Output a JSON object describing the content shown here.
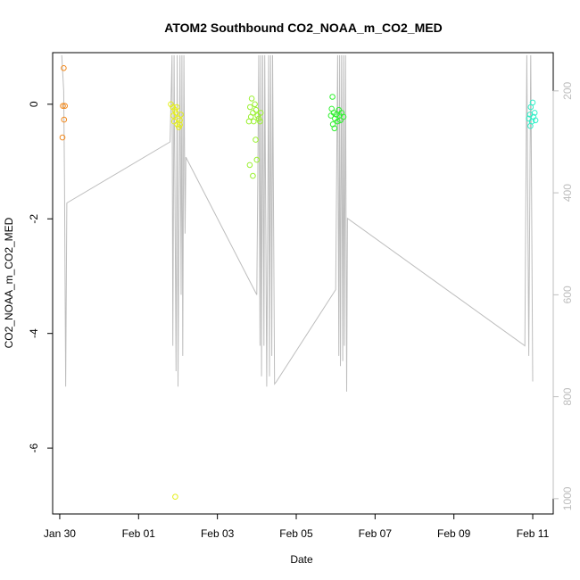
{
  "chart_data": {
    "type": "scatter",
    "title": "ATOM2 Southbound CO2_NOAA_m_CO2_MED",
    "xlabel": "Date",
    "ylabel": "CO2_NOAA_m_CO2_MED",
    "x_ticks": [
      "Jan 30",
      "Feb 01",
      "Feb 03",
      "Feb 05",
      "Feb 07",
      "Feb 09",
      "Feb 11"
    ],
    "x_tick_days": [
      0,
      2,
      4,
      6,
      8,
      10,
      12
    ],
    "xlim_days": [
      -0.18,
      12.52
    ],
    "ylim": [
      -7.15,
      0.9
    ],
    "y_ticks": [
      0,
      -2,
      -4,
      -6
    ],
    "right_axis": {
      "ticks": [
        200,
        400,
        600,
        800,
        1000
      ],
      "lim": [
        125,
        1030
      ],
      "color": "#bdbdbd"
    },
    "grid": false,
    "line_color": "#bdbdbd",
    "altitude_profile": [
      [
        0.05,
        130
      ],
      [
        0.1,
        200
      ],
      [
        0.12,
        380
      ],
      [
        0.15,
        780
      ],
      [
        0.18,
        420
      ],
      [
        2.8,
        300
      ],
      [
        2.85,
        130
      ],
      [
        2.87,
        700
      ],
      [
        2.9,
        130
      ],
      [
        2.95,
        750
      ],
      [
        2.98,
        130
      ],
      [
        3.0,
        780
      ],
      [
        3.05,
        130
      ],
      [
        3.08,
        600
      ],
      [
        3.1,
        130
      ],
      [
        3.12,
        720
      ],
      [
        3.15,
        130
      ],
      [
        3.18,
        480
      ],
      [
        3.2,
        330
      ],
      [
        5.0,
        600
      ],
      [
        5.05,
        130
      ],
      [
        5.08,
        700
      ],
      [
        5.1,
        130
      ],
      [
        5.12,
        760
      ],
      [
        5.15,
        130
      ],
      [
        5.18,
        700
      ],
      [
        5.2,
        130
      ],
      [
        5.25,
        780
      ],
      [
        5.3,
        130
      ],
      [
        5.32,
        760
      ],
      [
        5.35,
        130
      ],
      [
        5.38,
        720
      ],
      [
        5.4,
        130
      ],
      [
        5.45,
        775
      ],
      [
        5.5,
        770
      ],
      [
        7.0,
        590
      ],
      [
        7.05,
        130
      ],
      [
        7.08,
        720
      ],
      [
        7.1,
        130
      ],
      [
        7.12,
        740
      ],
      [
        7.15,
        130
      ],
      [
        7.18,
        730
      ],
      [
        7.2,
        130
      ],
      [
        7.22,
        700
      ],
      [
        7.25,
        130
      ],
      [
        7.28,
        790
      ],
      [
        7.3,
        450
      ],
      [
        11.8,
        700
      ],
      [
        11.85,
        130
      ],
      [
        11.9,
        720
      ],
      [
        11.95,
        130
      ],
      [
        12.0,
        770
      ]
    ],
    "series": [
      {
        "color": "#f28a1f",
        "points": [
          [
            0.1,
            0.63
          ],
          [
            0.08,
            -0.03
          ],
          [
            0.13,
            -0.03
          ],
          [
            0.11,
            -0.27
          ],
          [
            0.07,
            -0.58
          ]
        ]
      },
      {
        "color": "#e5ef1a",
        "points": [
          [
            2.82,
            0.0
          ],
          [
            2.87,
            -0.05
          ],
          [
            2.92,
            -0.1
          ],
          [
            2.88,
            -0.2
          ],
          [
            2.95,
            -0.15
          ],
          [
            3.0,
            -0.25
          ],
          [
            2.98,
            -0.35
          ],
          [
            3.05,
            -0.28
          ],
          [
            3.02,
            -0.4
          ],
          [
            3.07,
            -0.18
          ],
          [
            2.9,
            -0.3
          ],
          [
            2.97,
            -0.05
          ],
          [
            3.05,
            -0.36
          ],
          [
            2.93,
            -6.85
          ]
        ]
      },
      {
        "color": "#99f02e",
        "points": [
          [
            4.87,
            0.1
          ],
          [
            4.83,
            -0.05
          ],
          [
            4.9,
            -0.15
          ],
          [
            4.95,
            0.0
          ],
          [
            4.98,
            -0.1
          ],
          [
            5.02,
            -0.2
          ],
          [
            5.05,
            -0.25
          ],
          [
            5.1,
            -0.15
          ],
          [
            4.92,
            -0.3
          ],
          [
            4.85,
            -0.22
          ],
          [
            4.97,
            -0.62
          ],
          [
            5.0,
            -0.97
          ],
          [
            4.82,
            -1.06
          ],
          [
            4.9,
            -1.25
          ],
          [
            5.08,
            -0.3
          ],
          [
            4.8,
            -0.3
          ]
        ]
      },
      {
        "color": "#2ef02e",
        "points": [
          [
            6.92,
            0.13
          ],
          [
            6.9,
            -0.08
          ],
          [
            6.95,
            -0.15
          ],
          [
            6.88,
            -0.2
          ],
          [
            6.98,
            -0.25
          ],
          [
            7.02,
            -0.18
          ],
          [
            7.05,
            -0.3
          ],
          [
            7.1,
            -0.2
          ],
          [
            7.15,
            -0.15
          ],
          [
            7.2,
            -0.22
          ],
          [
            6.93,
            -0.35
          ],
          [
            7.08,
            -0.1
          ],
          [
            6.97,
            -0.42
          ],
          [
            7.12,
            -0.28
          ]
        ]
      },
      {
        "color": "#2ef0c8",
        "points": [
          [
            12.0,
            0.03
          ],
          [
            11.95,
            -0.05
          ],
          [
            11.93,
            -0.18
          ],
          [
            12.02,
            -0.22
          ],
          [
            11.98,
            -0.3
          ],
          [
            12.05,
            -0.15
          ],
          [
            11.9,
            -0.25
          ],
          [
            12.07,
            -0.28
          ],
          [
            11.94,
            -0.38
          ]
        ]
      }
    ]
  }
}
